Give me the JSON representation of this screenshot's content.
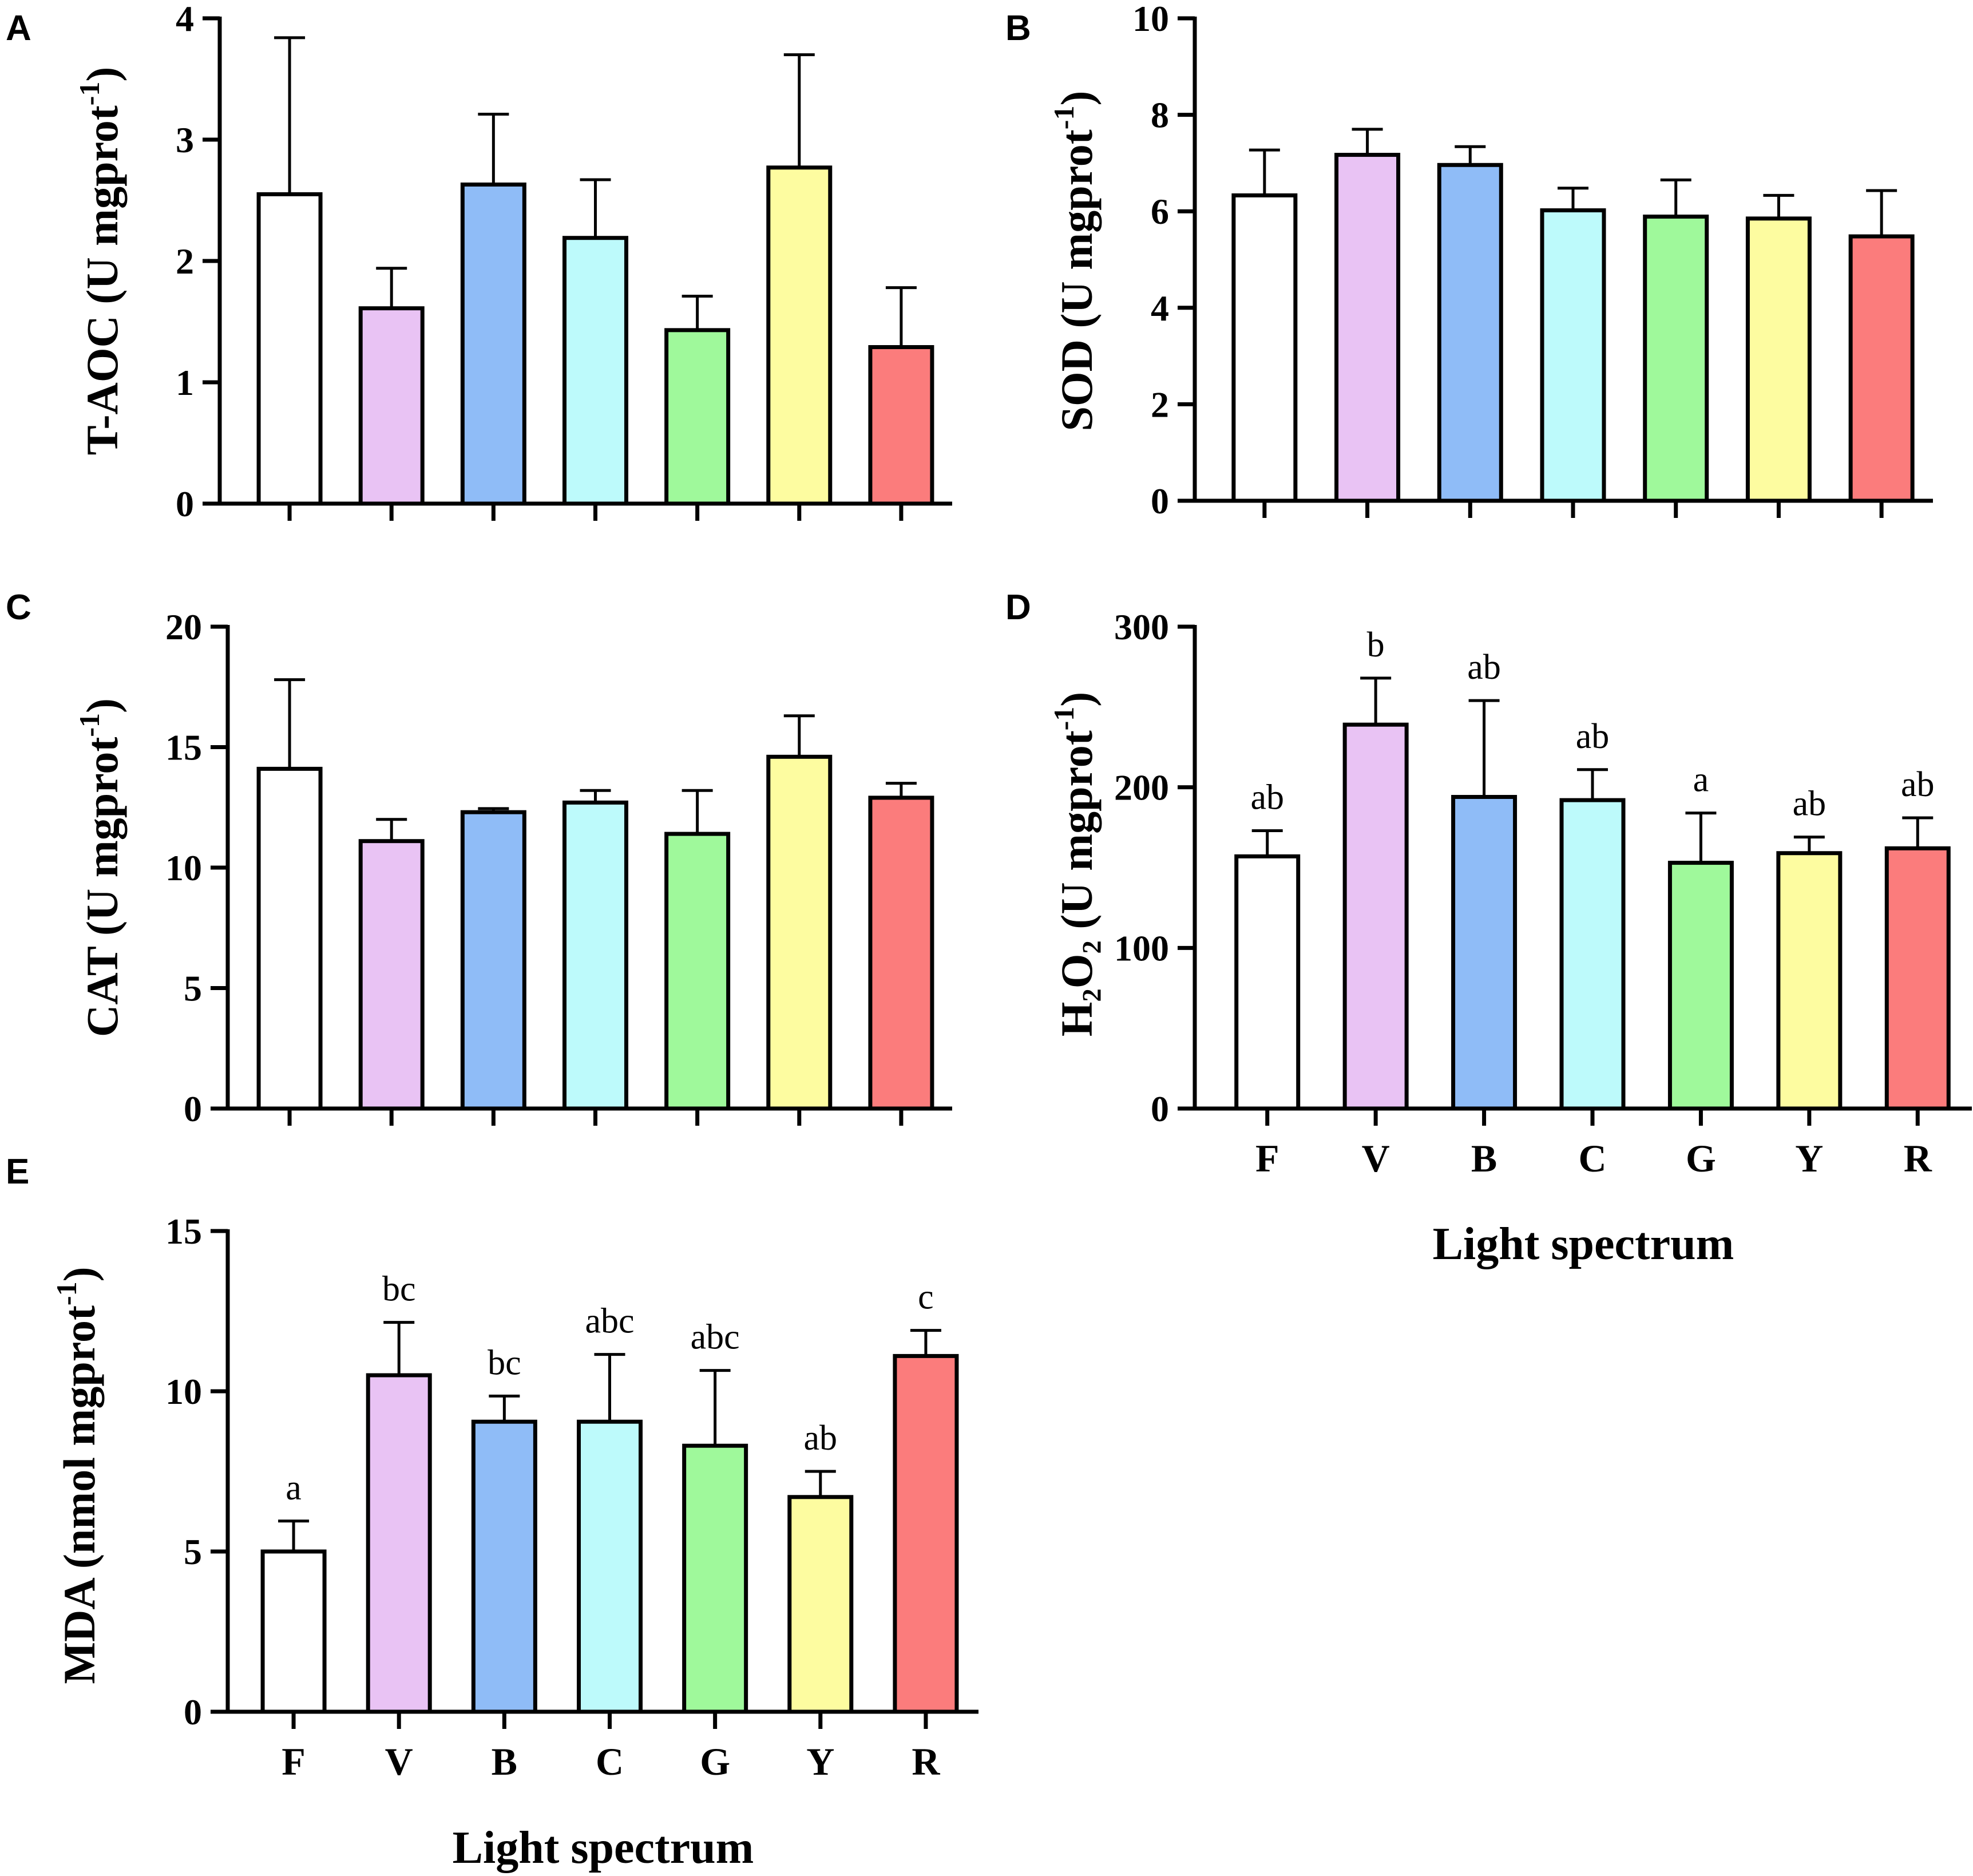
{
  "colors": {
    "F": "#ffffff",
    "V": "#e9c3f4",
    "B": "#8fbcf7",
    "C": "#bdfafb",
    "G": "#9ff99b",
    "Y": "#fdfca0",
    "R": "#fb7c7c",
    "axis": "#000000"
  },
  "chart_data": [
    {
      "panel": "A",
      "type": "bar",
      "ylabel": "T-AOC (U mgprot",
      "ylabel_sup": "-1",
      "ylabel_tail": ")",
      "categories": [
        "F",
        "V",
        "B",
        "C",
        "G",
        "Y",
        "R"
      ],
      "values": [
        2.55,
        1.61,
        2.63,
        2.19,
        1.43,
        2.77,
        1.29
      ],
      "errors": [
        1.29,
        0.33,
        0.58,
        0.48,
        0.28,
        0.93,
        0.49
      ],
      "sig_letters": [],
      "ylim": [
        0,
        4
      ],
      "yticks": [
        "0",
        "1",
        "2",
        "3",
        "4"
      ],
      "show_xlabels": false,
      "xlabel": ""
    },
    {
      "panel": "B",
      "type": "bar",
      "ylabel": "SOD (U mgprot",
      "ylabel_sup": "-1",
      "ylabel_tail": ")",
      "categories": [
        "F",
        "V",
        "B",
        "C",
        "G",
        "Y",
        "R"
      ],
      "values": [
        6.33,
        7.17,
        6.96,
        6.02,
        5.89,
        5.85,
        5.48
      ],
      "errors": [
        0.94,
        0.53,
        0.38,
        0.46,
        0.76,
        0.48,
        0.95
      ],
      "sig_letters": [],
      "ylim": [
        0,
        10
      ],
      "yticks": [
        "0",
        "2",
        "4",
        "6",
        "8",
        "10"
      ],
      "show_xlabels": false,
      "xlabel": ""
    },
    {
      "panel": "C",
      "type": "bar",
      "ylabel": "CAT (U mgprot",
      "ylabel_sup": "-1",
      "ylabel_tail": ")",
      "categories": [
        "F",
        "V",
        "B",
        "C",
        "G",
        "Y",
        "R"
      ],
      "values": [
        14.1,
        11.1,
        12.3,
        12.7,
        11.4,
        14.6,
        12.9
      ],
      "errors": [
        3.7,
        0.9,
        0.15,
        0.5,
        1.8,
        1.7,
        0.6
      ],
      "sig_letters": [],
      "ylim": [
        0,
        20
      ],
      "yticks": [
        "0",
        "5",
        "10",
        "15",
        "20"
      ],
      "show_xlabels": false,
      "xlabel": ""
    },
    {
      "panel": "D",
      "type": "bar",
      "ylabel": "(U mgprot",
      "ylabel_prefix": "H₂O₂",
      "ylabel_sup": "-1",
      "ylabel_tail": ")",
      "categories": [
        "F",
        "V",
        "B",
        "C",
        "G",
        "Y",
        "R"
      ],
      "values": [
        157,
        239,
        194,
        192,
        153,
        159,
        162
      ],
      "errors": [
        16,
        29,
        60,
        19,
        31,
        10,
        19
      ],
      "sig_letters": [
        "ab",
        "b",
        "ab",
        "ab",
        "a",
        "ab",
        "ab"
      ],
      "ylim": [
        0,
        300
      ],
      "yticks": [
        "0",
        "100",
        "200",
        "300"
      ],
      "show_xlabels": true,
      "xlabel": "Light spectrum"
    },
    {
      "panel": "E",
      "type": "bar",
      "ylabel": "MDA (nmol mgprot",
      "ylabel_sup": "-1",
      "ylabel_tail": ")",
      "categories": [
        "F",
        "V",
        "B",
        "C",
        "G",
        "Y",
        "R"
      ],
      "values": [
        5.0,
        10.5,
        9.05,
        9.05,
        8.3,
        6.7,
        11.1
      ],
      "errors": [
        0.95,
        1.65,
        0.8,
        2.1,
        2.35,
        0.8,
        0.8
      ],
      "sig_letters": [
        "a",
        "bc",
        "bc",
        "abc",
        "abc",
        "ab",
        "c"
      ],
      "ylim": [
        0,
        15
      ],
      "yticks": [
        "0",
        "5",
        "10",
        "15"
      ],
      "show_xlabels": true,
      "xlabel": "Light spectrum"
    }
  ]
}
